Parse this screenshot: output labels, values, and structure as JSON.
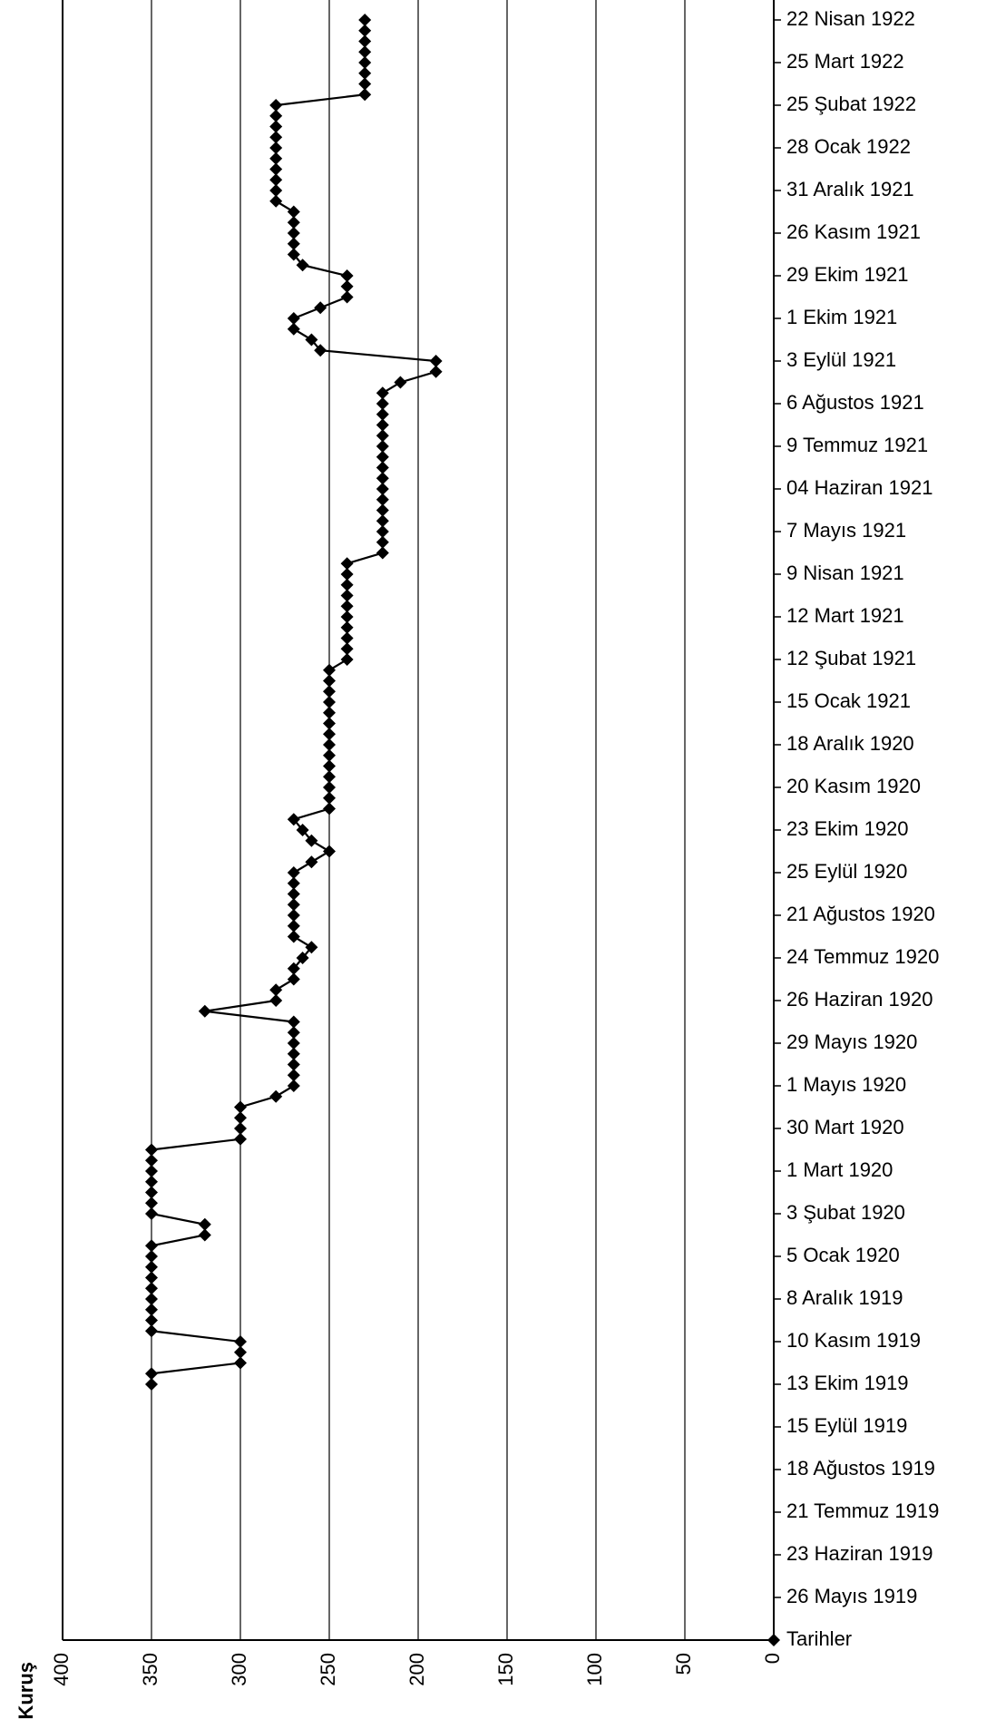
{
  "chart_data": {
    "type": "line",
    "orientation": "horizontal",
    "y_axis_title": "Kuruş",
    "categories": [
      null,
      null,
      null,
      "26 Mayıs 1919",
      null,
      null,
      null,
      "23 Haziran 1919",
      null,
      null,
      null,
      "21 Temmuz 1919",
      null,
      null,
      null,
      "18 Ağustos 1919",
      null,
      null,
      null,
      "15 Eylül 1919",
      null,
      null,
      null,
      "13 Ekim 1919",
      null,
      null,
      null,
      "10 Kasım 1919",
      null,
      null,
      null,
      "8 Aralık 1919",
      null,
      null,
      null,
      "5 Ocak 1920",
      null,
      null,
      null,
      "3 Şubat 1920",
      null,
      null,
      null,
      "1 Mart 1920",
      null,
      null,
      null,
      "30 Mart 1920",
      null,
      null,
      null,
      "1 Mayıs 1920",
      null,
      null,
      null,
      "29 Mayıs 1920",
      null,
      null,
      null,
      "26 Haziran 1920",
      null,
      null,
      null,
      "24 Temmuz 1920",
      null,
      null,
      null,
      "21 Ağustos 1920",
      null,
      null,
      null,
      "25 Eylül 1920",
      null,
      null,
      null,
      "23 Ekim 1920",
      null,
      null,
      null,
      "20 Kasım 1920",
      null,
      null,
      null,
      "18 Aralık 1920",
      null,
      null,
      null,
      "15 Ocak 1921",
      null,
      null,
      null,
      "12 Şubat 1921",
      null,
      null,
      null,
      "12 Mart 1921",
      null,
      null,
      null,
      "9 Nisan 1921",
      null,
      null,
      null,
      "7 Mayıs 1921",
      null,
      null,
      null,
      "04 Haziran 1921",
      null,
      null,
      null,
      "9 Temmuz 1921",
      null,
      null,
      null,
      "6 Ağustos 1921",
      null,
      null,
      null,
      "3 Eylül 1921",
      null,
      null,
      null,
      "1 Ekim 1921",
      null,
      null,
      null,
      "29 Ekim 1921",
      null,
      null,
      null,
      "26 Kasım 1921",
      null,
      null,
      null,
      "31 Aralık 1921",
      null,
      null,
      null,
      "28 Ocak 1922",
      null,
      null,
      null,
      "25 Şubat 1922",
      null,
      null,
      null,
      "25 Mart 1922",
      null,
      null,
      null,
      "22 Nisan 1922"
    ],
    "series": [
      {
        "name": "Tarihler",
        "color": "#000000",
        "values": [
          null,
          null,
          null,
          null,
          null,
          null,
          null,
          null,
          null,
          null,
          null,
          null,
          null,
          null,
          null,
          null,
          null,
          null,
          null,
          null,
          null,
          null,
          null,
          350,
          350,
          300,
          300,
          300,
          350,
          350,
          350,
          350,
          350,
          350,
          350,
          350,
          350,
          320,
          320,
          350,
          350,
          350,
          350,
          350,
          350,
          350,
          300,
          300,
          300,
          300,
          280,
          270,
          270,
          270,
          270,
          270,
          270,
          270,
          320,
          280,
          280,
          270,
          270,
          265,
          260,
          270,
          270,
          270,
          270,
          270,
          270,
          270,
          260,
          250,
          260,
          265,
          270,
          250,
          250,
          250,
          250,
          250,
          250,
          250,
          250,
          250,
          250,
          250,
          250,
          250,
          250,
          240,
          240,
          240,
          240,
          240,
          240,
          240,
          240,
          240,
          240,
          220,
          220,
          220,
          220,
          220,
          220,
          220,
          220,
          220,
          220,
          220,
          220,
          220,
          220,
          220,
          220,
          210,
          190,
          190,
          255,
          260,
          270,
          270,
          255,
          240,
          240,
          240,
          265,
          270,
          270,
          270,
          270,
          270,
          280,
          280,
          280,
          280,
          280,
          280,
          280,
          280,
          280,
          280,
          230,
          230,
          230,
          230,
          230,
          230,
          230,
          230
        ]
      }
    ],
    "xlim": [
      400,
      0
    ],
    "xticks": [
      400,
      350,
      300,
      250,
      200,
      150,
      100,
      50,
      0
    ],
    "grid": true,
    "legend": "bottom-right"
  }
}
